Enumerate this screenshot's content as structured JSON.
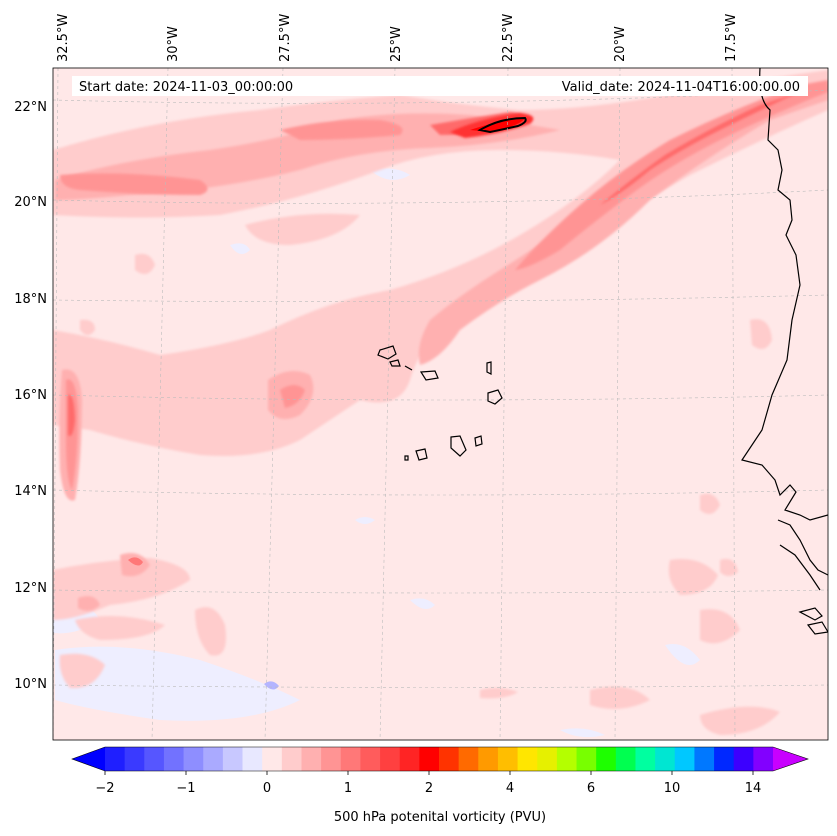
{
  "map": {
    "header_left": "Start date: 2024-11-03_00:00:00",
    "header_right": "Valid_date: 2024-11-04T16:00:00.00",
    "lon_labels": [
      "32.5°W",
      "30°W",
      "27.5°W",
      "25°W",
      "22.5°W",
      "20°W",
      "17.5°W"
    ],
    "lat_labels": [
      "22°N",
      "20°N",
      "18°N",
      "16°N",
      "14°N",
      "12°N",
      "10°N"
    ],
    "field_name": "500 hPa potential vorticity",
    "background_color": "#ffe8e8"
  },
  "colorbar": {
    "label": "500 hPa potenital vorticity (PVU)",
    "tick_labels": [
      "−2",
      "−1",
      "0",
      "1",
      "2",
      "4",
      "6",
      "10",
      "14"
    ],
    "colors": [
      "#1f1fff",
      "#3a3aff",
      "#5656ff",
      "#7272ff",
      "#8e8eff",
      "#aaaaff",
      "#c8c8ff",
      "#e8e8ff",
      "#ffe8e8",
      "#ffcccc",
      "#ffb0b0",
      "#ff9494",
      "#ff7878",
      "#ff5c5c",
      "#ff4040",
      "#ff2424",
      "#ff0000",
      "#ff3300",
      "#ff6a00",
      "#ff9a00",
      "#ffbe00",
      "#ffe600",
      "#e6f000",
      "#b4ff00",
      "#78ff00",
      "#1eff00",
      "#00ff50",
      "#00ffa0",
      "#00e6d2",
      "#00c8ff",
      "#0078ff",
      "#0028ff",
      "#3c00ff",
      "#8200ff"
    ],
    "extend_min_color": "#0000ff",
    "extend_max_color": "#c800ff"
  }
}
